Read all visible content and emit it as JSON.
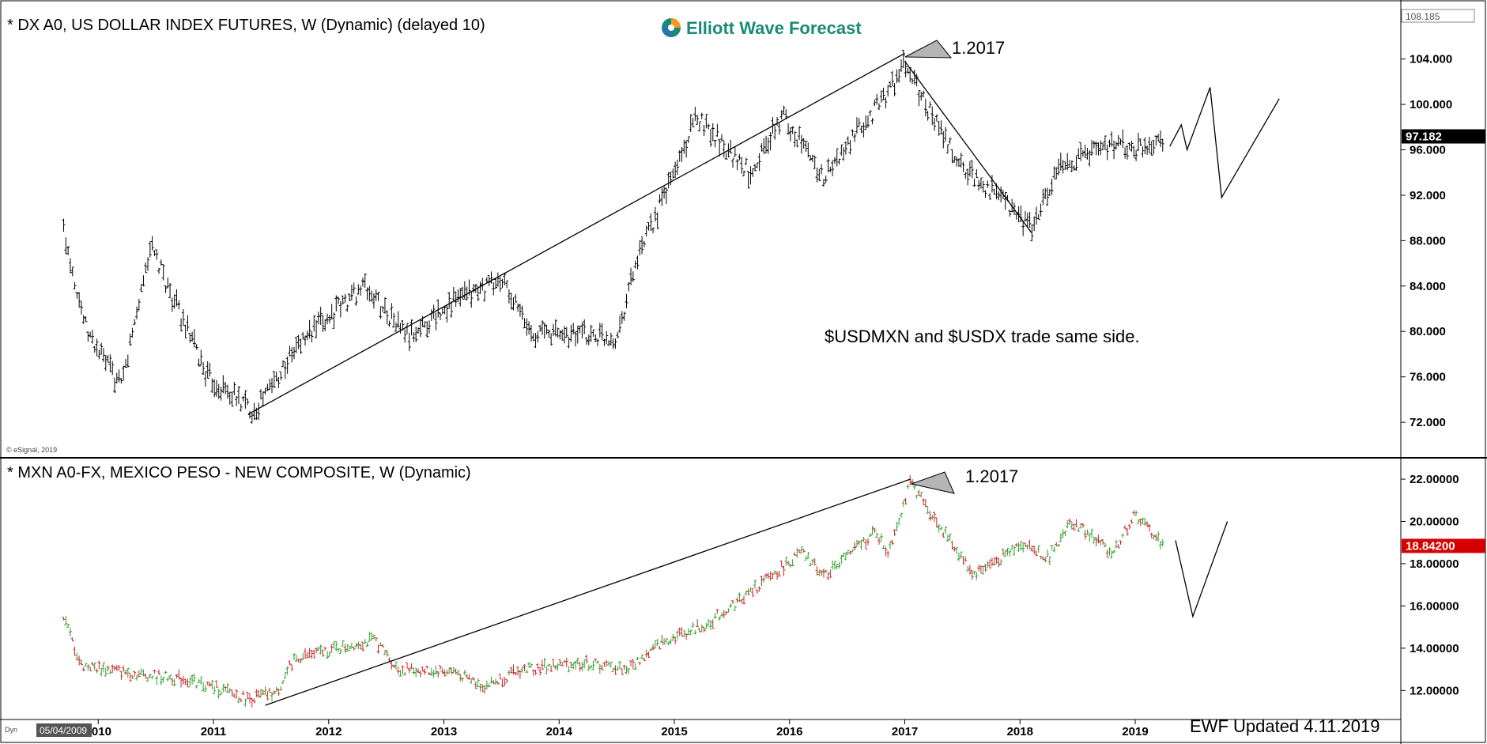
{
  "colors": {
    "up": "#2ca02c",
    "down": "#c62828",
    "bar": "#000000",
    "mxn_badge": "#d40000",
    "dx_badge": "#000000",
    "logo_teal": "#1a8a78",
    "logo_orange": "#f39a1f"
  },
  "brand": {
    "name": "Elliott Wave Forecast",
    "icon": "ewf-swirl-icon"
  },
  "copyright": "© eSignal, 2019",
  "footer": {
    "updated": "EWF  Updated 4.11.2019",
    "date_box": "05/04/2009",
    "dyn": "Dyn"
  },
  "chart_data": [
    {
      "type": "ohlc",
      "title": "* DX A0, US DOLLAR INDEX FUTURES, W (Dynamic) (delayed 10)",
      "ylim": [
        69.5,
        108.5
      ],
      "y_ticks": [
        "104.000",
        "100.000",
        "96.000",
        "92.000",
        "88.000",
        "84.000",
        "80.000",
        "76.000",
        "72.000"
      ],
      "top_value": "108.185",
      "last_price": "97.182",
      "series": [
        {
          "x": [
            2009.7,
            2009.9,
            2010.2,
            2010.45,
            2010.95,
            2011.35,
            2011.75,
            2012.3,
            2012.7,
            2013.05,
            2013.5,
            2013.75,
            2014.5,
            2014.65,
            2015.2,
            2015.65,
            2015.95,
            2016.3,
            2016.85,
            2017.0,
            2017.45,
            2017.85,
            2018.1,
            2018.35,
            2018.75,
            2019.0,
            2019.25
          ],
          "y": [
            89.0,
            80.0,
            75.0,
            87.5,
            76.0,
            73.0,
            79.0,
            84.0,
            79.5,
            82.5,
            84.5,
            80.0,
            79.5,
            85.5,
            99.0,
            94.0,
            99.0,
            93.5,
            101.0,
            103.5,
            95.0,
            91.5,
            89.0,
            94.5,
            96.5,
            96.0,
            97.2
          ]
        }
      ],
      "trendline": {
        "x": [
          2011.3,
          2017.0
        ],
        "y": [
          72.7,
          104.5
        ]
      },
      "line": {
        "x": [
          2017.0,
          2018.1
        ],
        "y": [
          103.8,
          88.7
        ]
      },
      "projection": {
        "x": [
          2019.3,
          2019.4,
          2019.45,
          2019.65,
          2019.75,
          2020.25
        ],
        "y": [
          96.3,
          98.2,
          96.0,
          101.5,
          91.8,
          100.5
        ]
      },
      "label_1": "1.2017",
      "annotation": "$USDMXN and $USDX trade same side."
    },
    {
      "type": "ohlc",
      "title": "* MXN A0-FX, MEXICO PESO - NEW COMPOSITE, W (Dynamic)",
      "ylim": [
        11.0,
        22.6
      ],
      "y_ticks": [
        "22.00000",
        "20.00000",
        "18.00000",
        "16.00000",
        "14.00000",
        "12.00000"
      ],
      "last_price": "18.84200",
      "series": [
        {
          "x": [
            2009.7,
            2009.85,
            2010.3,
            2010.8,
            2011.3,
            2011.55,
            2011.7,
            2012.0,
            2012.4,
            2012.6,
            2013.1,
            2013.35,
            2013.7,
            2014.2,
            2014.6,
            2014.9,
            2015.3,
            2015.7,
            2016.1,
            2016.3,
            2016.75,
            2016.85,
            2017.05,
            2017.4,
            2017.6,
            2017.9,
            2018.0,
            2018.25,
            2018.45,
            2018.8,
            2019.0,
            2019.25
          ],
          "y": [
            15.5,
            13.2,
            12.8,
            12.5,
            11.6,
            11.9,
            13.5,
            13.9,
            14.4,
            13.0,
            12.9,
            12.2,
            13.0,
            13.3,
            13.0,
            14.3,
            15.2,
            16.8,
            18.5,
            17.5,
            19.5,
            18.5,
            21.8,
            19.0,
            17.5,
            18.5,
            19.0,
            18.3,
            20.0,
            18.5,
            20.3,
            18.84
          ]
        }
      ],
      "trendline": {
        "x": [
          2011.45,
          2017.05
        ],
        "y": [
          11.3,
          22.0
        ]
      },
      "projection": {
        "x": [
          2019.35,
          2019.5,
          2019.8
        ],
        "y": [
          19.1,
          15.5,
          20.0
        ]
      },
      "label_1": "1.2017"
    }
  ],
  "x_axis": {
    "labels": [
      "2010",
      "2011",
      "2012",
      "2013",
      "2014",
      "2015",
      "2016",
      "2017",
      "2018",
      "2019"
    ]
  }
}
